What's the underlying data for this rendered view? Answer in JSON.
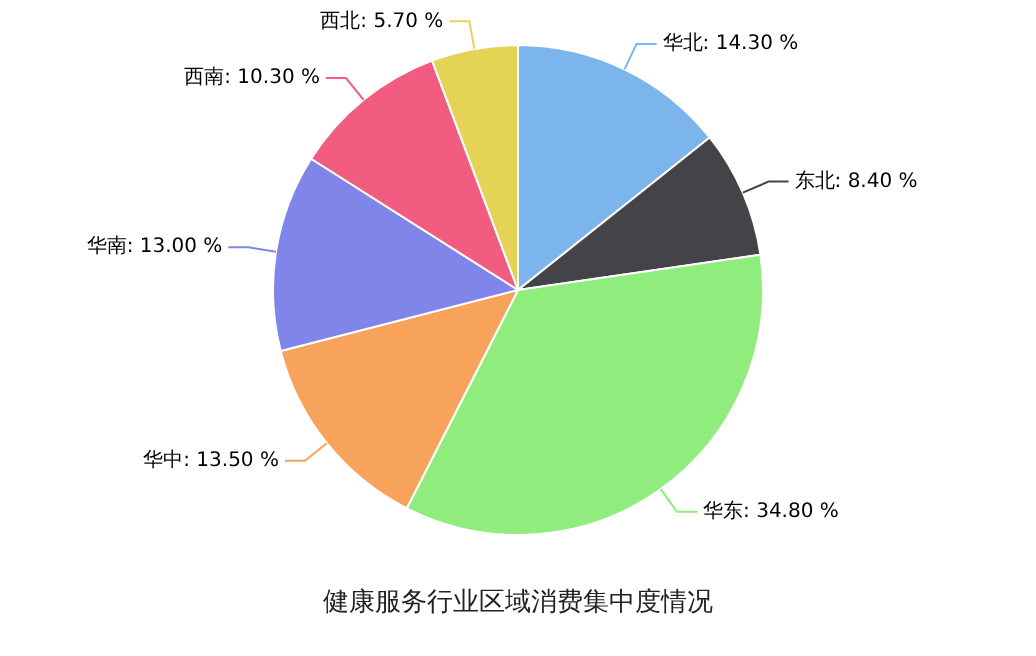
{
  "chart_data": {
    "type": "pie",
    "title": "健康服务行业区域消费集中度情况",
    "categories": [
      "华北",
      "东北",
      "华东",
      "华中",
      "华南",
      "西南",
      "西北"
    ],
    "values": [
      14.3,
      8.4,
      34.8,
      13.5,
      13.0,
      10.3,
      5.7
    ],
    "value_labels": [
      "14.30 %",
      "8.40 %",
      "34.80 %",
      "13.50 %",
      "13.00 %",
      "10.30 %",
      "5.70 %"
    ],
    "colors": [
      "#7cb5ec",
      "#434348",
      "#90ed7d",
      "#f7a35c",
      "#8085e9",
      "#f15c80",
      "#e4d354"
    ],
    "legend": false
  }
}
